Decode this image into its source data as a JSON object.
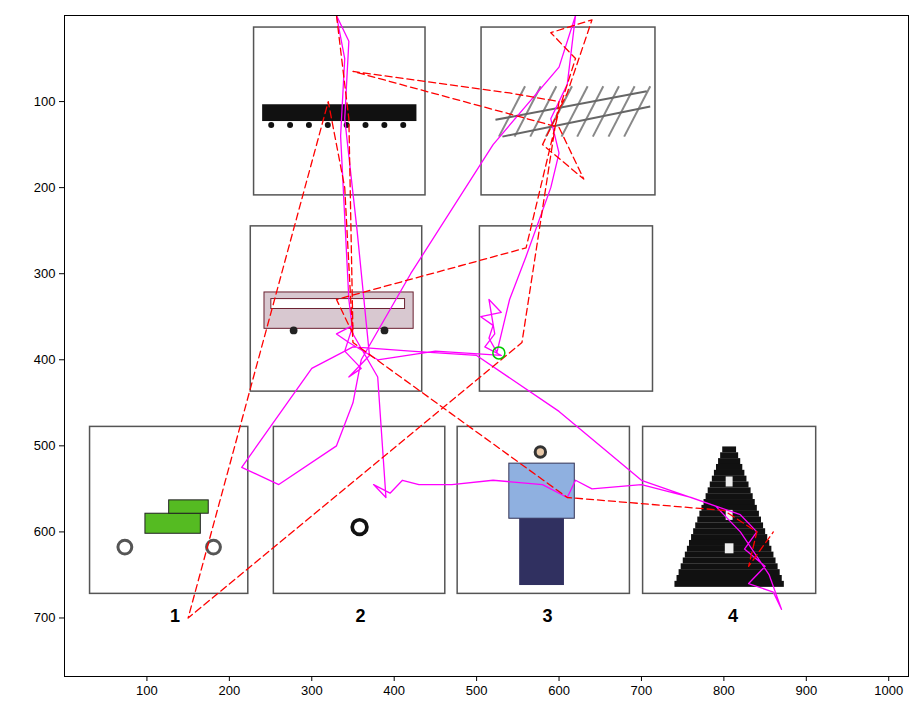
{
  "chart_data": {
    "type": "line",
    "xlim": [
      0,
      1024
    ],
    "ylim": [
      768,
      0
    ],
    "xticks": [
      100,
      200,
      300,
      400,
      500,
      600,
      700,
      800,
      900,
      1000
    ],
    "yticks": [
      100,
      200,
      300,
      400,
      500,
      600,
      700
    ],
    "grid": false,
    "boxes": [
      {
        "x": [
          230,
          438
        ],
        "y": [
          14,
          209
        ]
      },
      {
        "x": [
          506,
          717
        ],
        "y": [
          14,
          209
        ]
      },
      {
        "x": [
          226,
          434
        ],
        "y": [
          245,
          437
        ]
      },
      {
        "x": [
          504,
          714
        ],
        "y": [
          245,
          437
        ]
      },
      {
        "x": [
          31,
          223
        ],
        "y": [
          478,
          672
        ]
      },
      {
        "x": [
          254,
          462
        ],
        "y": [
          478,
          672
        ]
      },
      {
        "x": [
          477,
          686
        ],
        "y": [
          478,
          672
        ]
      },
      {
        "x": [
          702,
          912
        ],
        "y": [
          478,
          672
        ]
      }
    ],
    "annotations": [
      {
        "text": "1",
        "x": 134,
        "y": 698
      },
      {
        "text": "2",
        "x": 359,
        "y": 698
      },
      {
        "text": "3",
        "x": 586,
        "y": 698
      },
      {
        "text": "4",
        "x": 811,
        "y": 698
      }
    ],
    "series": [
      {
        "type": "line",
        "color": "#ff00ff",
        "line_style": "solid",
        "x": [
          525,
          515,
          520,
          505,
          530,
          515,
          522,
          510,
          530,
          450,
          380,
          345,
          330,
          350,
          340,
          360,
          345,
          370,
          355,
          340,
          345,
          330,
          340,
          335,
          345,
          350,
          380,
          390,
          375,
          395,
          410,
          430,
          470,
          520,
          580,
          610,
          620,
          640,
          700,
          760,
          820,
          840,
          825,
          850,
          830,
          860,
          870,
          855,
          820,
          790,
          700,
          600,
          500,
          420,
          350,
          300,
          215,
          260,
          330,
          350,
          360,
          420,
          520,
          600,
          620,
          610,
          590,
          600,
          590,
          560,
          540,
          525
        ],
        "y": [
          392,
          375,
          360,
          350,
          345,
          330,
          370,
          385,
          395,
          390,
          400,
          380,
          370,
          360,
          390,
          410,
          420,
          395,
          250,
          120,
          30,
          0,
          50,
          140,
          330,
          370,
          420,
          560,
          545,
          555,
          540,
          545,
          545,
          540,
          545,
          560,
          540,
          550,
          545,
          560,
          580,
          600,
          620,
          640,
          660,
          670,
          690,
          650,
          600,
          570,
          540,
          460,
          395,
          390,
          385,
          410,
          525,
          545,
          500,
          450,
          400,
          300,
          150,
          60,
          0,
          80,
          120,
          160,
          200,
          280,
          330,
          390
        ]
      },
      {
        "type": "line",
        "color": "#ff0000",
        "line_style": "dashed",
        "x": [
          330,
          345,
          350,
          330,
          560,
          600,
          620,
          590,
          640,
          610,
          580,
          630,
          600,
          350,
          540,
          600,
          555,
          150,
          320,
          340,
          350,
          610,
          800,
          840,
          830,
          860
        ],
        "y": [
          0,
          120,
          370,
          330,
          270,
          110,
          50,
          20,
          5,
          90,
          150,
          190,
          130,
          65,
          90,
          100,
          380,
          700,
          100,
          200,
          380,
          560,
          575,
          600,
          640,
          600
        ]
      },
      {
        "type": "scatter",
        "color": "#00cc00",
        "marker": "circle",
        "x": [
          527
        ],
        "y": [
          392
        ]
      }
    ]
  }
}
